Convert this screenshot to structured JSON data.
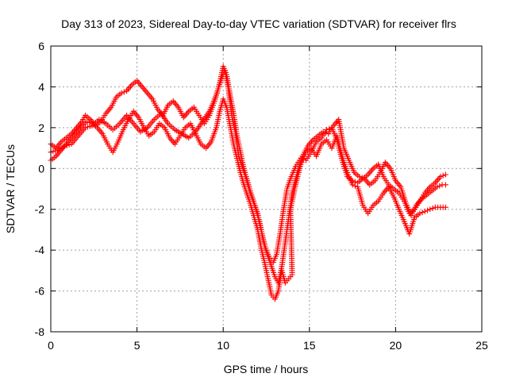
{
  "chart_data": {
    "type": "scatter",
    "title": "Day 313 of 2023, Sidereal Day-to-day VTEC variation (SDTVAR) for receiver flrs",
    "xlabel": "GPS time / hours",
    "ylabel": "SDTVAR / TECUs",
    "xlim": [
      0,
      25
    ],
    "ylim": [
      -8,
      6
    ],
    "xticks": [
      "0",
      "5",
      "10",
      "15",
      "20",
      "25"
    ],
    "yticks": [
      "-8",
      "-6",
      "-4",
      "-2",
      "0",
      "2",
      "4",
      "6"
    ],
    "grid": true,
    "legend": "none",
    "marker": "+",
    "color": "#ff0000",
    "series": [
      {
        "points": [
          [
            0,
            1.2
          ],
          [
            0.3,
            1.0
          ],
          [
            0.6,
            1.3
          ],
          [
            0.9,
            1.5
          ],
          [
            1.2,
            1.7
          ],
          [
            1.5,
            2.0
          ],
          [
            1.8,
            2.3
          ],
          [
            2.0,
            2.6
          ],
          [
            2.3,
            2.4
          ],
          [
            2.6,
            2.1
          ],
          [
            2.9,
            2.3
          ],
          [
            3.2,
            2.7
          ],
          [
            3.5,
            3.0
          ],
          [
            3.8,
            3.5
          ],
          [
            4.1,
            3.7
          ],
          [
            4.4,
            3.8
          ],
          [
            4.7,
            4.1
          ],
          [
            5.0,
            4.3
          ],
          [
            5.3,
            4.0
          ],
          [
            5.6,
            3.7
          ],
          [
            5.9,
            3.4
          ],
          [
            6.2,
            2.9
          ],
          [
            6.5,
            2.6
          ],
          [
            6.8,
            3.1
          ],
          [
            7.1,
            3.3
          ],
          [
            7.4,
            3.0
          ],
          [
            7.7,
            2.5
          ],
          [
            8.0,
            2.8
          ],
          [
            8.3,
            3.0
          ],
          [
            8.6,
            2.6
          ],
          [
            8.9,
            2.2
          ],
          [
            9.2,
            2.6
          ],
          [
            9.5,
            3.3
          ],
          [
            9.8,
            4.2
          ],
          [
            10.0,
            5.0
          ],
          [
            10.2,
            4.6
          ],
          [
            10.4,
            3.6
          ],
          [
            10.6,
            2.7
          ],
          [
            10.8,
            1.6
          ],
          [
            11.0,
            0.8
          ],
          [
            11.2,
            0.0
          ],
          [
            11.4,
            -0.6
          ],
          [
            11.6,
            -1.2
          ],
          [
            11.8,
            -1.7
          ],
          [
            12.0,
            -2.2
          ],
          [
            12.2,
            -3.0
          ],
          [
            12.4,
            -3.8
          ],
          [
            12.6,
            -4.3
          ],
          [
            12.8,
            -4.8
          ],
          [
            13.0,
            -5.3
          ],
          [
            13.2,
            -5.6
          ],
          [
            13.4,
            -4.8
          ],
          [
            13.6,
            -3.6
          ],
          [
            13.8,
            -2.4
          ],
          [
            14.0,
            -1.2
          ],
          [
            14.3,
            -0.2
          ],
          [
            14.6,
            0.6
          ],
          [
            14.9,
            1.1
          ],
          [
            15.2,
            1.4
          ],
          [
            15.5,
            1.6
          ],
          [
            15.8,
            1.8
          ],
          [
            16.1,
            1.7
          ],
          [
            16.4,
            2.1
          ],
          [
            16.7,
            2.4
          ],
          [
            17.0,
            1.0
          ],
          [
            17.3,
            0.4
          ],
          [
            17.6,
            -0.2
          ],
          [
            17.9,
            -0.4
          ],
          [
            18.2,
            -0.5
          ],
          [
            18.5,
            -0.8
          ],
          [
            18.8,
            -0.6
          ],
          [
            19.1,
            -0.2
          ],
          [
            19.4,
            0.3
          ],
          [
            19.7,
            0.0
          ],
          [
            20.0,
            -0.6
          ],
          [
            20.3,
            -0.9
          ],
          [
            20.6,
            -1.7
          ],
          [
            20.9,
            -2.3
          ],
          [
            21.2,
            -1.8
          ],
          [
            21.5,
            -1.5
          ],
          [
            21.8,
            -1.3
          ],
          [
            22.1,
            -1.1
          ],
          [
            22.4,
            -0.9
          ],
          [
            22.7,
            -0.8
          ],
          [
            22.9,
            -0.8
          ]
        ]
      },
      {
        "points": [
          [
            0,
            0.4
          ],
          [
            0.3,
            0.6
          ],
          [
            0.6,
            0.9
          ],
          [
            0.9,
            1.2
          ],
          [
            1.2,
            1.5
          ],
          [
            1.5,
            1.8
          ],
          [
            1.8,
            2.1
          ],
          [
            2.1,
            2.3
          ],
          [
            2.4,
            2.2
          ],
          [
            2.7,
            2.0
          ],
          [
            3.0,
            1.7
          ],
          [
            3.3,
            1.2
          ],
          [
            3.6,
            0.8
          ],
          [
            3.9,
            1.3
          ],
          [
            4.2,
            1.9
          ],
          [
            4.5,
            2.4
          ],
          [
            4.8,
            2.8
          ],
          [
            5.1,
            2.5
          ],
          [
            5.4,
            2.0
          ],
          [
            5.7,
            1.6
          ],
          [
            6.0,
            1.8
          ],
          [
            6.3,
            2.2
          ],
          [
            6.6,
            2.0
          ],
          [
            6.9,
            1.5
          ],
          [
            7.2,
            1.2
          ],
          [
            7.5,
            1.6
          ],
          [
            7.8,
            2.0
          ],
          [
            8.1,
            2.2
          ],
          [
            8.4,
            1.7
          ],
          [
            8.7,
            1.2
          ],
          [
            9.0,
            1.0
          ],
          [
            9.3,
            1.3
          ],
          [
            9.6,
            2.0
          ],
          [
            9.8,
            2.8
          ],
          [
            10.0,
            3.4
          ],
          [
            10.2,
            3.0
          ],
          [
            10.4,
            2.1
          ],
          [
            10.6,
            1.2
          ],
          [
            10.8,
            0.5
          ],
          [
            11.0,
            -0.2
          ],
          [
            11.2,
            -0.8
          ],
          [
            11.4,
            -1.3
          ],
          [
            11.6,
            -1.8
          ],
          [
            11.8,
            -2.4
          ],
          [
            12.0,
            -3.0
          ],
          [
            12.2,
            -3.9
          ],
          [
            12.4,
            -4.6
          ],
          [
            12.6,
            -5.4
          ],
          [
            12.8,
            -6.2
          ],
          [
            13.0,
            -6.4
          ],
          [
            13.2,
            -6.0
          ],
          [
            13.4,
            -5.0
          ],
          [
            13.6,
            -5.6
          ],
          [
            13.8,
            -5.4
          ],
          [
            14.0,
            -5.2
          ],
          [
            13.9,
            -2.0
          ],
          [
            14.2,
            -0.8
          ],
          [
            14.5,
            0.2
          ],
          [
            14.8,
            0.8
          ],
          [
            15.1,
            1.0
          ],
          [
            15.4,
            0.6
          ],
          [
            15.7,
            1.2
          ],
          [
            16.0,
            1.4
          ],
          [
            16.3,
            1.0
          ],
          [
            16.6,
            1.6
          ],
          [
            16.9,
            0.6
          ],
          [
            17.2,
            -0.2
          ],
          [
            17.5,
            -0.8
          ],
          [
            17.8,
            -0.9
          ],
          [
            18.1,
            -1.8
          ],
          [
            18.4,
            -2.2
          ],
          [
            18.7,
            -1.8
          ],
          [
            19.0,
            -1.6
          ],
          [
            19.3,
            -1.2
          ],
          [
            19.6,
            -0.9
          ],
          [
            19.9,
            -1.4
          ],
          [
            20.2,
            -2.0
          ],
          [
            20.5,
            -2.6
          ],
          [
            20.8,
            -3.2
          ],
          [
            21.1,
            -2.4
          ],
          [
            21.4,
            -2.2
          ],
          [
            21.7,
            -2.1
          ],
          [
            22.0,
            -2.0
          ],
          [
            22.3,
            -1.9
          ],
          [
            22.6,
            -1.9
          ],
          [
            22.9,
            -1.9
          ]
        ]
      },
      {
        "points": [
          [
            0,
            0.8
          ],
          [
            0.4,
            0.9
          ],
          [
            0.8,
            1.1
          ],
          [
            1.2,
            1.2
          ],
          [
            1.6,
            1.6
          ],
          [
            2.0,
            2.0
          ],
          [
            2.4,
            2.1
          ],
          [
            2.8,
            2.4
          ],
          [
            3.2,
            2.2
          ],
          [
            3.6,
            1.9
          ],
          [
            4.0,
            2.2
          ],
          [
            4.4,
            2.6
          ],
          [
            4.8,
            2.2
          ],
          [
            5.2,
            1.8
          ],
          [
            5.6,
            2.0
          ],
          [
            6.0,
            2.4
          ],
          [
            6.4,
            2.7
          ],
          [
            6.8,
            2.2
          ],
          [
            7.2,
            1.9
          ],
          [
            7.6,
            1.7
          ],
          [
            8.0,
            1.5
          ],
          [
            8.4,
            1.8
          ],
          [
            8.8,
            2.3
          ],
          [
            9.2,
            2.8
          ],
          [
            9.6,
            3.6
          ],
          [
            9.9,
            4.4
          ],
          [
            10.1,
            4.8
          ],
          [
            10.3,
            3.9
          ],
          [
            10.5,
            2.6
          ],
          [
            10.7,
            1.8
          ],
          [
            10.9,
            0.6
          ],
          [
            11.1,
            0.1
          ],
          [
            11.3,
            -0.4
          ],
          [
            11.5,
            -1.0
          ],
          [
            11.7,
            -1.5
          ],
          [
            11.9,
            -2.0
          ],
          [
            12.1,
            -2.6
          ],
          [
            12.3,
            -3.4
          ],
          [
            12.5,
            -4.0
          ],
          [
            12.7,
            -4.4
          ],
          [
            12.9,
            -4.6
          ],
          [
            13.1,
            -4.2
          ],
          [
            13.3,
            -3.2
          ],
          [
            13.5,
            -2.0
          ],
          [
            13.7,
            -1.0
          ],
          [
            13.9,
            -0.5
          ],
          [
            14.2,
            0.1
          ],
          [
            14.5,
            0.5
          ],
          [
            14.8,
            0.4
          ],
          [
            15.1,
            0.8
          ],
          [
            15.4,
            1.3
          ],
          [
            15.7,
            1.5
          ],
          [
            16.0,
            1.9
          ],
          [
            16.3,
            2.0
          ],
          [
            16.6,
            1.4
          ],
          [
            16.9,
            0.4
          ],
          [
            17.2,
            -0.4
          ],
          [
            17.5,
            -0.6
          ],
          [
            17.8,
            -0.7
          ],
          [
            18.1,
            -0.5
          ],
          [
            18.4,
            -0.3
          ],
          [
            18.7,
            0.0
          ],
          [
            19.0,
            0.2
          ],
          [
            19.3,
            -0.4
          ],
          [
            19.6,
            -0.8
          ],
          [
            19.9,
            -1.0
          ],
          [
            20.2,
            -1.2
          ],
          [
            20.5,
            -1.6
          ],
          [
            20.8,
            -2.2
          ],
          [
            21.1,
            -2.0
          ],
          [
            21.4,
            -1.6
          ],
          [
            21.7,
            -1.2
          ],
          [
            22.0,
            -0.9
          ],
          [
            22.3,
            -0.7
          ],
          [
            22.6,
            -0.4
          ],
          [
            22.9,
            -0.3
          ]
        ]
      }
    ]
  }
}
